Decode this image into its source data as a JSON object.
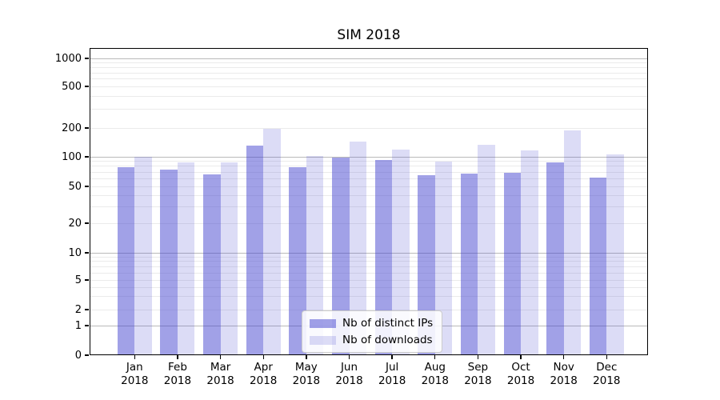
{
  "title": "SIM 2018",
  "chart_data": {
    "type": "bar",
    "title": "SIM 2018",
    "categories": [
      "Jan 2018",
      "Feb 2018",
      "Mar 2018",
      "Apr 2018",
      "May 2018",
      "Jun 2018",
      "Jul 2018",
      "Aug 2018",
      "Sep 2018",
      "Oct 2018",
      "Nov 2018",
      "Dec 2018"
    ],
    "series": [
      {
        "name": "Nb of distinct IPs",
        "color": "rgba(68,68,208,0.5)",
        "values": [
          79,
          74,
          66,
          130,
          78,
          99,
          93,
          65,
          68,
          69,
          87,
          62
        ]
      },
      {
        "name": "Nb of downloads",
        "color": "rgba(68,68,208,0.19)",
        "values": [
          100,
          88,
          88,
          196,
          102,
          145,
          118,
          90,
          133,
          116,
          188,
          105
        ]
      }
    ],
    "yscale": "symlog",
    "ytick_values": [
      0,
      1,
      2,
      5,
      10,
      20,
      50,
      100,
      200,
      500,
      1000
    ],
    "ytick_labels": [
      "0",
      "1",
      "2",
      "5",
      "10",
      "20",
      "50",
      "100",
      "200",
      "500",
      "1000"
    ],
    "major_grid_values": [
      1,
      10,
      100,
      1000
    ],
    "minor_grid_values": [
      2,
      3,
      4,
      5,
      6,
      7,
      8,
      9,
      20,
      30,
      40,
      50,
      60,
      70,
      80,
      90,
      200,
      300,
      400,
      500,
      600,
      700,
      800,
      900
    ],
    "grid": "on",
    "legend_position": "lower center",
    "xlabel": "",
    "ylabel": ""
  }
}
